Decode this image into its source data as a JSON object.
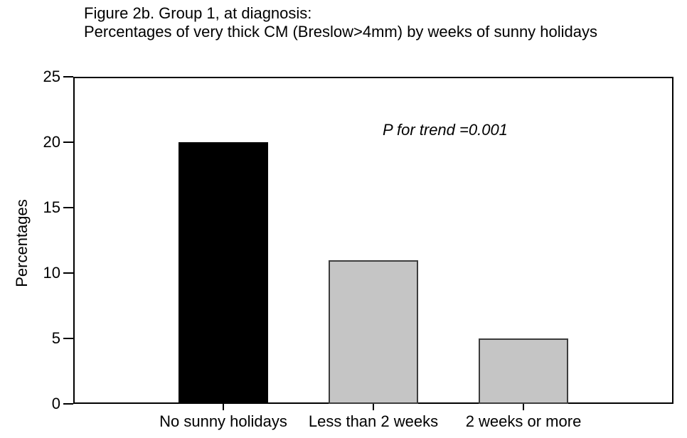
{
  "figure": {
    "title_line1": "Figure 2b. Group 1, at diagnosis:",
    "title_line2": "Percentages of very thick CM (Breslow>4mm) by weeks of sunny holidays"
  },
  "chart_data": {
    "type": "bar",
    "title": "Figure 2b. Group 1, at diagnosis: Percentages of very thick CM (Breslow>4mm) by weeks of sunny holidays",
    "categories": [
      "No sunny holidays",
      "Less than 2 weeks",
      "2 weeks or more"
    ],
    "values": [
      20,
      11,
      5
    ],
    "xlabel": "",
    "ylabel": "Percentages",
    "ylim": [
      0,
      25
    ],
    "yticks": [
      0,
      5,
      10,
      15,
      20,
      25
    ],
    "annotation": "P for trend =0.001",
    "grid": false,
    "legend": false,
    "background": "#ffffff",
    "axis_color": "#000000",
    "text_color": "#000000",
    "bar_colors": [
      "#000000",
      "#c5c5c5",
      "#c5c5c5"
    ],
    "bar_border_colors": [
      "#000000",
      "#3d3d3d",
      "#3d3d3d"
    ]
  }
}
